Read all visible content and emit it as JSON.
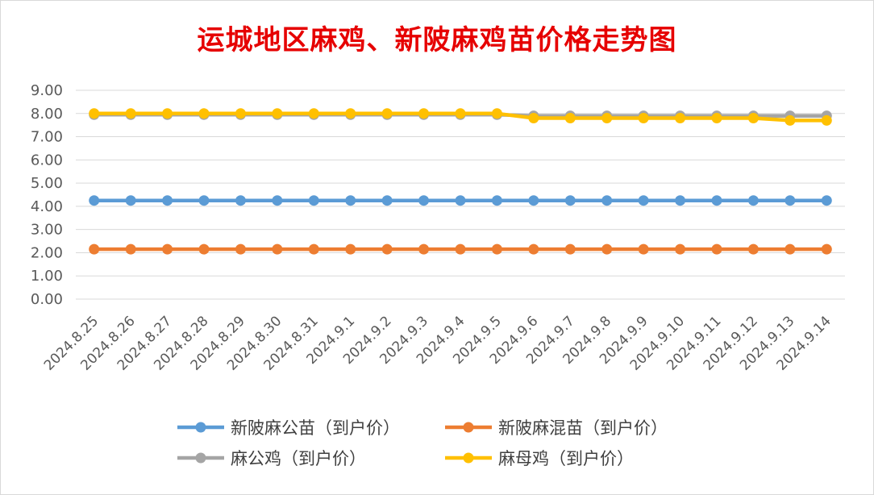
{
  "chart_data": {
    "type": "line",
    "title": "运城地区麻鸡、新陂麻鸡苗价格走势图",
    "xlabel": "",
    "ylabel": "",
    "ylim": [
      0,
      9
    ],
    "yticks": [
      "0.00",
      "1.00",
      "2.00",
      "3.00",
      "4.00",
      "5.00",
      "6.00",
      "7.00",
      "8.00",
      "9.00"
    ],
    "grid": true,
    "legend_position": "bottom",
    "categories": [
      "2024.8.25",
      "2024.8.26",
      "2024.8.27",
      "2024.8.28",
      "2024.8.29",
      "2024.8.30",
      "2024.8.31",
      "2024.9.1",
      "2024.9.2",
      "2024.9.3",
      "2024.9.4",
      "2024.9.5",
      "2024.9.6",
      "2024.9.7",
      "2024.9.8",
      "2024.9.9",
      "2024.9.10",
      "2024.9.11",
      "2024.9.12",
      "2024.9.13",
      "2024.9.14"
    ],
    "series": [
      {
        "name": "新陂麻公苗（到户价）",
        "color": "#5b9bd5",
        "values": [
          4.25,
          4.25,
          4.25,
          4.25,
          4.25,
          4.25,
          4.25,
          4.25,
          4.25,
          4.25,
          4.25,
          4.25,
          4.25,
          4.25,
          4.25,
          4.25,
          4.25,
          4.25,
          4.25,
          4.25,
          4.25
        ]
      },
      {
        "name": "新陂麻混苗（到户价）",
        "color": "#ed7d31",
        "values": [
          2.15,
          2.15,
          2.15,
          2.15,
          2.15,
          2.15,
          2.15,
          2.15,
          2.15,
          2.15,
          2.15,
          2.15,
          2.15,
          2.15,
          2.15,
          2.15,
          2.15,
          2.15,
          2.15,
          2.15,
          2.15
        ]
      },
      {
        "name": "麻公鸡（到户价）",
        "color": "#a5a5a5",
        "values": [
          7.95,
          7.95,
          7.95,
          7.95,
          7.95,
          7.95,
          7.95,
          7.95,
          7.95,
          7.95,
          7.95,
          7.95,
          7.9,
          7.9,
          7.9,
          7.9,
          7.9,
          7.9,
          7.9,
          7.9,
          7.9
        ]
      },
      {
        "name": "麻母鸡（到户价）",
        "color": "#ffc000",
        "values": [
          8.0,
          8.0,
          8.0,
          8.0,
          8.0,
          8.0,
          8.0,
          8.0,
          8.0,
          8.0,
          8.0,
          8.0,
          7.8,
          7.8,
          7.8,
          7.8,
          7.8,
          7.8,
          7.8,
          7.7,
          7.7
        ]
      }
    ]
  }
}
